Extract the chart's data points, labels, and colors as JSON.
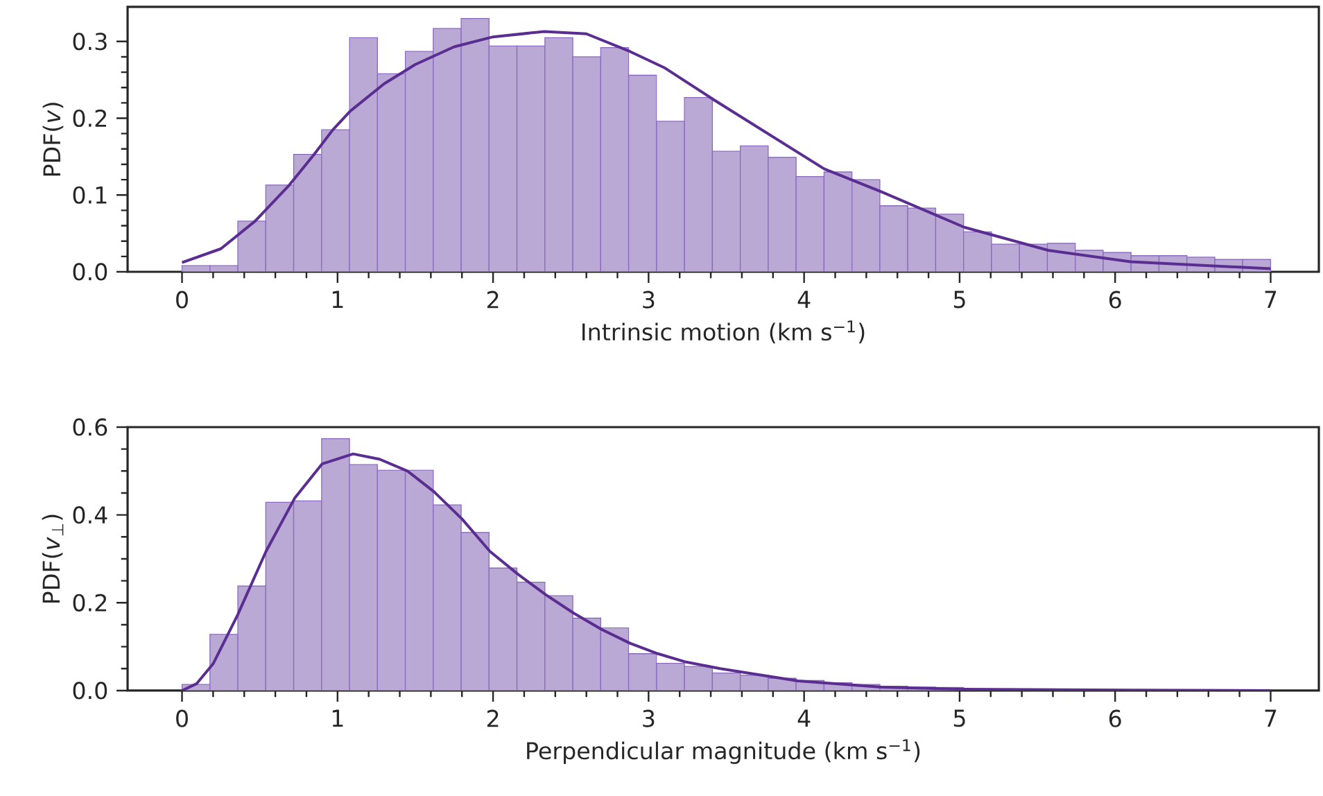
{
  "chart_data": [
    {
      "type": "histogram",
      "xlabel": "Intrinsic motion (km s$^{−1}$)",
      "ylabel": "PDF(*v*)",
      "color": "#b9a9d4",
      "bins": [
        0,
        0.1795,
        0.359,
        0.5385,
        0.7179,
        0.8974,
        1.0769,
        1.2564,
        1.4359,
        1.6154,
        1.7949,
        1.9744,
        2.1538,
        2.3333,
        2.5128,
        2.6923,
        2.8718,
        3.0513,
        3.2308,
        3.4103,
        3.5897,
        3.7692,
        3.9487,
        4.1282,
        4.3077,
        4.4872,
        4.6667,
        4.8462,
        5.0256,
        5.2051,
        5.3846,
        5.5641,
        5.7436,
        5.9231,
        6.1026,
        6.2821,
        6.4615,
        6.641,
        6.8205,
        7
      ],
      "values": [
        0.008,
        0.008,
        0.066,
        0.113,
        0.153,
        0.185,
        0.305,
        0.258,
        0.287,
        0.317,
        0.33,
        0.294,
        0.294,
        0.305,
        0.28,
        0.292,
        0.256,
        0.196,
        0.227,
        0.157,
        0.164,
        0.149,
        0.124,
        0.13,
        0.12,
        0.086,
        0.083,
        0.075,
        0.052,
        0.036,
        0.036,
        0.037,
        0.028,
        0.025,
        0.021,
        0.021,
        0.019,
        0.016,
        0.016
      ],
      "series": [
        {
          "type": "line",
          "color": "#5a2d91",
          "x": [
            0,
            0.25,
            0.47,
            0.69,
            0.85,
            0.97,
            1.08,
            1.3,
            1.5,
            1.75,
            2.0,
            2.33,
            2.6,
            2.88,
            3.1,
            3.42,
            4.13,
            4.5,
            5.03,
            5.57,
            6.1,
            7
          ],
          "values": [
            0.012,
            0.03,
            0.066,
            0.113,
            0.153,
            0.185,
            0.209,
            0.245,
            0.27,
            0.293,
            0.306,
            0.313,
            0.31,
            0.287,
            0.266,
            0.224,
            0.134,
            0.104,
            0.058,
            0.028,
            0.013,
            0.004
          ]
        }
      ],
      "xlim": [
        -0.35,
        7.31
      ],
      "ylim": [
        0,
        0.345
      ],
      "xticks": [
        0,
        1,
        2,
        3,
        4,
        5,
        6,
        7
      ],
      "yticks": [
        {
          "value": 0,
          "label": "0.0"
        },
        {
          "value": 0.1,
          "label": "0.1"
        },
        {
          "value": 0.2,
          "label": "0.2"
        },
        {
          "value": 0.3,
          "label": "0.3"
        }
      ]
    },
    {
      "type": "histogram",
      "xlabel": "Perpendicular magnitude (km s$^{−1}$)",
      "ylabel": "PDF(*v*$_{⊥}$)",
      "color": "#b9a9d4",
      "bins": [
        0,
        0.1795,
        0.359,
        0.5385,
        0.7179,
        0.8974,
        1.0769,
        1.2564,
        1.4359,
        1.6154,
        1.7949,
        1.9744,
        2.1538,
        2.3333,
        2.5128,
        2.6923,
        2.8718,
        3.0513,
        3.2308,
        3.4103,
        3.5897,
        3.7692,
        3.9487,
        4.1282,
        4.3077,
        4.4872,
        4.6667,
        4.8462,
        5.0256,
        5.2051,
        5.3846,
        5.5641,
        5.7436,
        5.9231,
        6.1026,
        6.2821,
        6.4615,
        6.641,
        6.8205,
        7
      ],
      "values": [
        0.014,
        0.128,
        0.238,
        0.429,
        0.432,
        0.574,
        0.515,
        0.502,
        0.502,
        0.423,
        0.36,
        0.279,
        0.247,
        0.216,
        0.165,
        0.143,
        0.084,
        0.062,
        0.055,
        0.04,
        0.035,
        0.028,
        0.023,
        0.018,
        0.014,
        0.01,
        0.008,
        0.007,
        null,
        null,
        null,
        null,
        null,
        null,
        null,
        null,
        null,
        null,
        null
      ],
      "series": [
        {
          "type": "line",
          "color": "#5a2d91",
          "x": [
            0,
            0.095,
            0.2,
            0.356,
            0.54,
            0.724,
            0.9,
            1.1,
            1.27,
            1.45,
            1.62,
            1.8,
            1.98,
            2.16,
            2.34,
            2.52,
            2.7,
            2.88,
            3.06,
            3.23,
            3.46,
            3.96,
            4.5,
            5.03,
            6.07,
            7
          ],
          "values": [
            0,
            0.016,
            0.061,
            0.171,
            0.317,
            0.438,
            0.516,
            0.539,
            0.527,
            0.5,
            0.453,
            0.391,
            0.317,
            0.265,
            0.218,
            0.176,
            0.139,
            0.108,
            0.084,
            0.066,
            0.05,
            0.022,
            0.008,
            0.003,
            0.001,
            0
          ]
        }
      ],
      "xlim": [
        -0.35,
        7.31
      ],
      "ylim": [
        0,
        0.6
      ],
      "xticks": [
        0,
        1,
        2,
        3,
        4,
        5,
        6,
        7
      ],
      "yticks": [
        {
          "value": 0,
          "label": "0.0"
        },
        {
          "value": 0.2,
          "label": "0.2"
        },
        {
          "value": 0.4,
          "label": "0.4"
        },
        {
          "value": 0.6,
          "label": "0.6"
        }
      ]
    }
  ]
}
